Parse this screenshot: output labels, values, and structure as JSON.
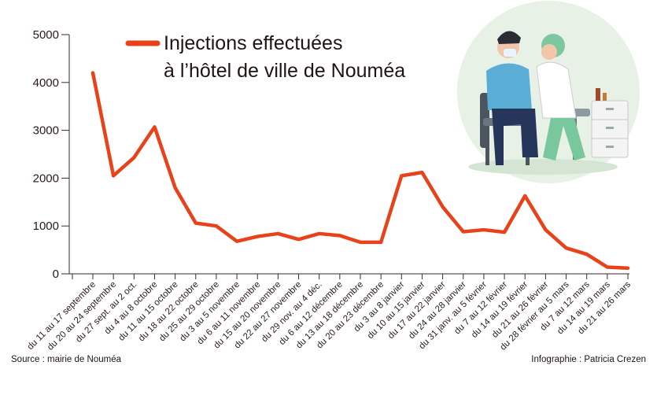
{
  "chart_data": {
    "type": "line",
    "title": "",
    "legend": [
      "Injections effectuées",
      "à l’hôtel de ville de Nouméa"
    ],
    "legend_placement": "top-left",
    "xlabel": "",
    "ylabel": "",
    "ylim": [
      0,
      5000
    ],
    "yticks": [
      "0",
      "1000",
      "2000",
      "3000",
      "4000",
      "5000"
    ],
    "grid": false,
    "line_color": "#e8421a",
    "categories": [
      "du 11 au 17 septembre",
      "du 20 au 24 septembre",
      "du 27 sept. au 2 oct.",
      "du 4 au 8 octobre",
      "du 11 au 15 octobre",
      "du 18 au 22 octobre",
      "du 25 au 29 octobre",
      "du 3 au 5 novembre",
      "du 6 au 11 novembre",
      "du 15 au 20 novembre",
      "du 22 au 27 novembre",
      "du 29 nov. au 4 déc.",
      "du 6 au 12 décembre",
      "du 13 au 18 décembre",
      "du 20 au 23 décembre",
      "du 3 au 8 janvier",
      "du 10 au 15 janvier",
      "du 17 au 22 janvier",
      "du 24 au 28 janvier",
      "du 31 janv. au 5 février",
      "du 7 au 12 février",
      "du 14 au 19 février",
      "du 21 au 26 février",
      "du 28 février au 5 mars",
      "du 7 au 12 mars",
      "du 14 au 19 mars",
      "du 21 au 26 mars"
    ],
    "series": [
      {
        "name": "Injections effectuées à l’hôtel de ville de Nouméa",
        "values": [
          4200,
          2050,
          2430,
          3070,
          1800,
          1060,
          1000,
          680,
          780,
          840,
          720,
          840,
          800,
          660,
          660,
          2050,
          2120,
          1400,
          880,
          920,
          870,
          1630,
          920,
          540,
          410,
          140,
          120
        ]
      }
    ]
  },
  "footer": {
    "source": "Source : mairie de Nouméa",
    "credit": "Infographie : Patricia Crezen"
  }
}
